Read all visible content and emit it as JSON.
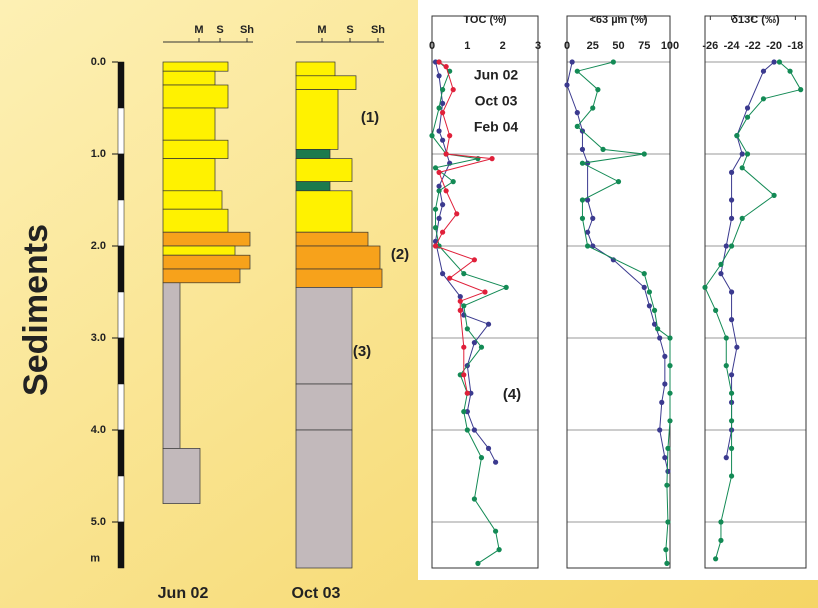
{
  "depth_axis": {
    "title": "Sediments",
    "unit": "m",
    "ylim": [
      5.5,
      -0.5
    ],
    "ticks": [
      {
        "value": 0,
        "label": "0.0"
      },
      {
        "value": 1,
        "label": "1.0"
      },
      {
        "value": 2,
        "label": "2.0"
      },
      {
        "value": 3,
        "label": "3.0"
      },
      {
        "value": 4,
        "label": "4.0"
      },
      {
        "value": 5,
        "label": "5.0"
      }
    ]
  },
  "logs": [
    {
      "name": "Jun 02",
      "columns": [
        "M",
        "S",
        "Sh"
      ]
    },
    {
      "name": "Oct 03",
      "columns": [
        "M",
        "S",
        "Sh"
      ]
    }
  ],
  "annotations": [
    "(1)",
    "(2)",
    "(3)",
    "(4)"
  ],
  "chart_data": [
    {
      "type": "profile",
      "title": "TOC (%)",
      "xlim": [
        0,
        3
      ],
      "xticks": [
        0,
        1,
        2,
        3
      ],
      "ylim": [
        5.5,
        -0.5
      ],
      "series": [
        {
          "name": "Jun 02",
          "color": "#3b3a8f",
          "depths": [
            0.0,
            0.15,
            0.45,
            0.75,
            0.85,
            1.1,
            1.35,
            1.55,
            1.7,
            1.95,
            2.3,
            2.55,
            2.75,
            2.85,
            3.05,
            3.3,
            3.6,
            3.8,
            4.0,
            4.2,
            4.35
          ],
          "values": [
            0.1,
            0.2,
            0.3,
            0.2,
            0.3,
            0.5,
            0.2,
            0.3,
            0.2,
            0.1,
            0.3,
            0.8,
            0.9,
            1.6,
            1.2,
            1.0,
            1.1,
            1.0,
            1.2,
            1.6,
            1.8
          ]
        },
        {
          "name": "Oct 03",
          "color": "#138a55",
          "depths": [
            0.0,
            0.1,
            0.3,
            0.5,
            0.8,
            1.0,
            1.05,
            1.15,
            1.3,
            1.4,
            1.6,
            1.8,
            2.0,
            2.3,
            2.45,
            2.65,
            2.9,
            3.1,
            3.4,
            3.6,
            3.8,
            4.0,
            4.3,
            4.75,
            5.1,
            5.3,
            5.45
          ],
          "values": [
            0.2,
            0.5,
            0.3,
            0.2,
            0.0,
            0.4,
            1.3,
            0.1,
            0.6,
            0.2,
            0.1,
            0.1,
            0.2,
            0.9,
            2.1,
            0.9,
            1.0,
            1.4,
            0.8,
            1.0,
            0.9,
            1.0,
            1.4,
            1.2,
            1.8,
            1.9,
            1.3
          ]
        },
        {
          "name": "Feb 04",
          "color": "#e0203a",
          "depths": [
            0.0,
            0.05,
            0.3,
            0.55,
            0.8,
            1.0,
            1.05,
            1.2,
            1.4,
            1.65,
            1.85,
            2.0,
            2.15,
            2.35,
            2.5,
            2.6,
            2.7,
            3.1,
            3.4,
            3.6
          ],
          "values": [
            0.2,
            0.4,
            0.6,
            0.3,
            0.5,
            0.4,
            1.7,
            0.2,
            0.4,
            0.7,
            0.3,
            0.1,
            1.2,
            0.5,
            1.5,
            0.8,
            0.8,
            0.9,
            0.9,
            1.0
          ]
        }
      ]
    },
    {
      "type": "profile",
      "title": "<63 µm (%)",
      "xlim": [
        0,
        100
      ],
      "xticks": [
        0,
        25,
        50,
        75,
        100
      ],
      "ylim": [
        5.5,
        -0.5
      ],
      "series": [
        {
          "name": "Jun 02",
          "color": "#3b3a8f",
          "depths": [
            0.0,
            0.25,
            0.55,
            0.75,
            0.95,
            1.1,
            1.5,
            1.7,
            1.85,
            2.0,
            2.15,
            2.45,
            2.65,
            2.85,
            3.0,
            3.2,
            3.5,
            3.7,
            4.0,
            4.3,
            4.45
          ],
          "values": [
            5,
            0,
            10,
            15,
            15,
            20,
            20,
            25,
            20,
            25,
            45,
            75,
            80,
            85,
            90,
            95,
            95,
            92,
            90,
            95,
            98
          ]
        },
        {
          "name": "Oct 03",
          "color": "#138a55",
          "depths": [
            0.0,
            0.1,
            0.3,
            0.5,
            0.7,
            0.95,
            1.0,
            1.1,
            1.3,
            1.5,
            1.7,
            2.0,
            2.3,
            2.5,
            2.7,
            2.9,
            3.0,
            3.3,
            3.6,
            3.9,
            4.2,
            4.6,
            5.0,
            5.3,
            5.45
          ],
          "values": [
            45,
            10,
            30,
            25,
            10,
            35,
            75,
            15,
            50,
            15,
            15,
            20,
            75,
            80,
            85,
            88,
            100,
            100,
            100,
            100,
            98,
            97,
            98,
            96,
            97
          ]
        }
      ]
    },
    {
      "type": "profile",
      "title": "δ13C (‰)",
      "xlim": [
        -26.5,
        -17
      ],
      "xticks": [
        -26,
        -24,
        -22,
        -20,
        -18
      ],
      "ylim": [
        5.5,
        -0.5
      ],
      "series": [
        {
          "name": "Jun 02",
          "color": "#3b3a8f",
          "depths": [
            0.0,
            0.1,
            0.5,
            0.8,
            1.0,
            1.2,
            1.5,
            1.7,
            2.0,
            2.3,
            2.5,
            2.8,
            3.1,
            3.4,
            3.7,
            4.0,
            4.3
          ],
          "values": [
            -20,
            -21,
            -22.5,
            -23.5,
            -23,
            -24,
            -24,
            -24,
            -24.5,
            -25,
            -24,
            -24,
            -23.5,
            -24,
            -24,
            -24,
            -24.5
          ]
        },
        {
          "name": "Oct 03",
          "color": "#138a55",
          "depths": [
            0.0,
            0.1,
            0.3,
            0.4,
            0.6,
            0.8,
            1.0,
            1.15,
            1.45,
            1.7,
            2.0,
            2.2,
            2.45,
            2.7,
            3.0,
            3.3,
            3.6,
            3.9,
            4.2,
            4.5,
            5.0,
            5.2,
            5.4
          ],
          "values": [
            -19.5,
            -18.5,
            -17.5,
            -21,
            -22.5,
            -23.5,
            -22.5,
            -23,
            -20,
            -23,
            -24,
            -25,
            -26.5,
            -25.5,
            -24.5,
            -24.5,
            -24,
            -24,
            -24,
            -24,
            -25,
            -25,
            -25.5
          ]
        }
      ]
    }
  ]
}
